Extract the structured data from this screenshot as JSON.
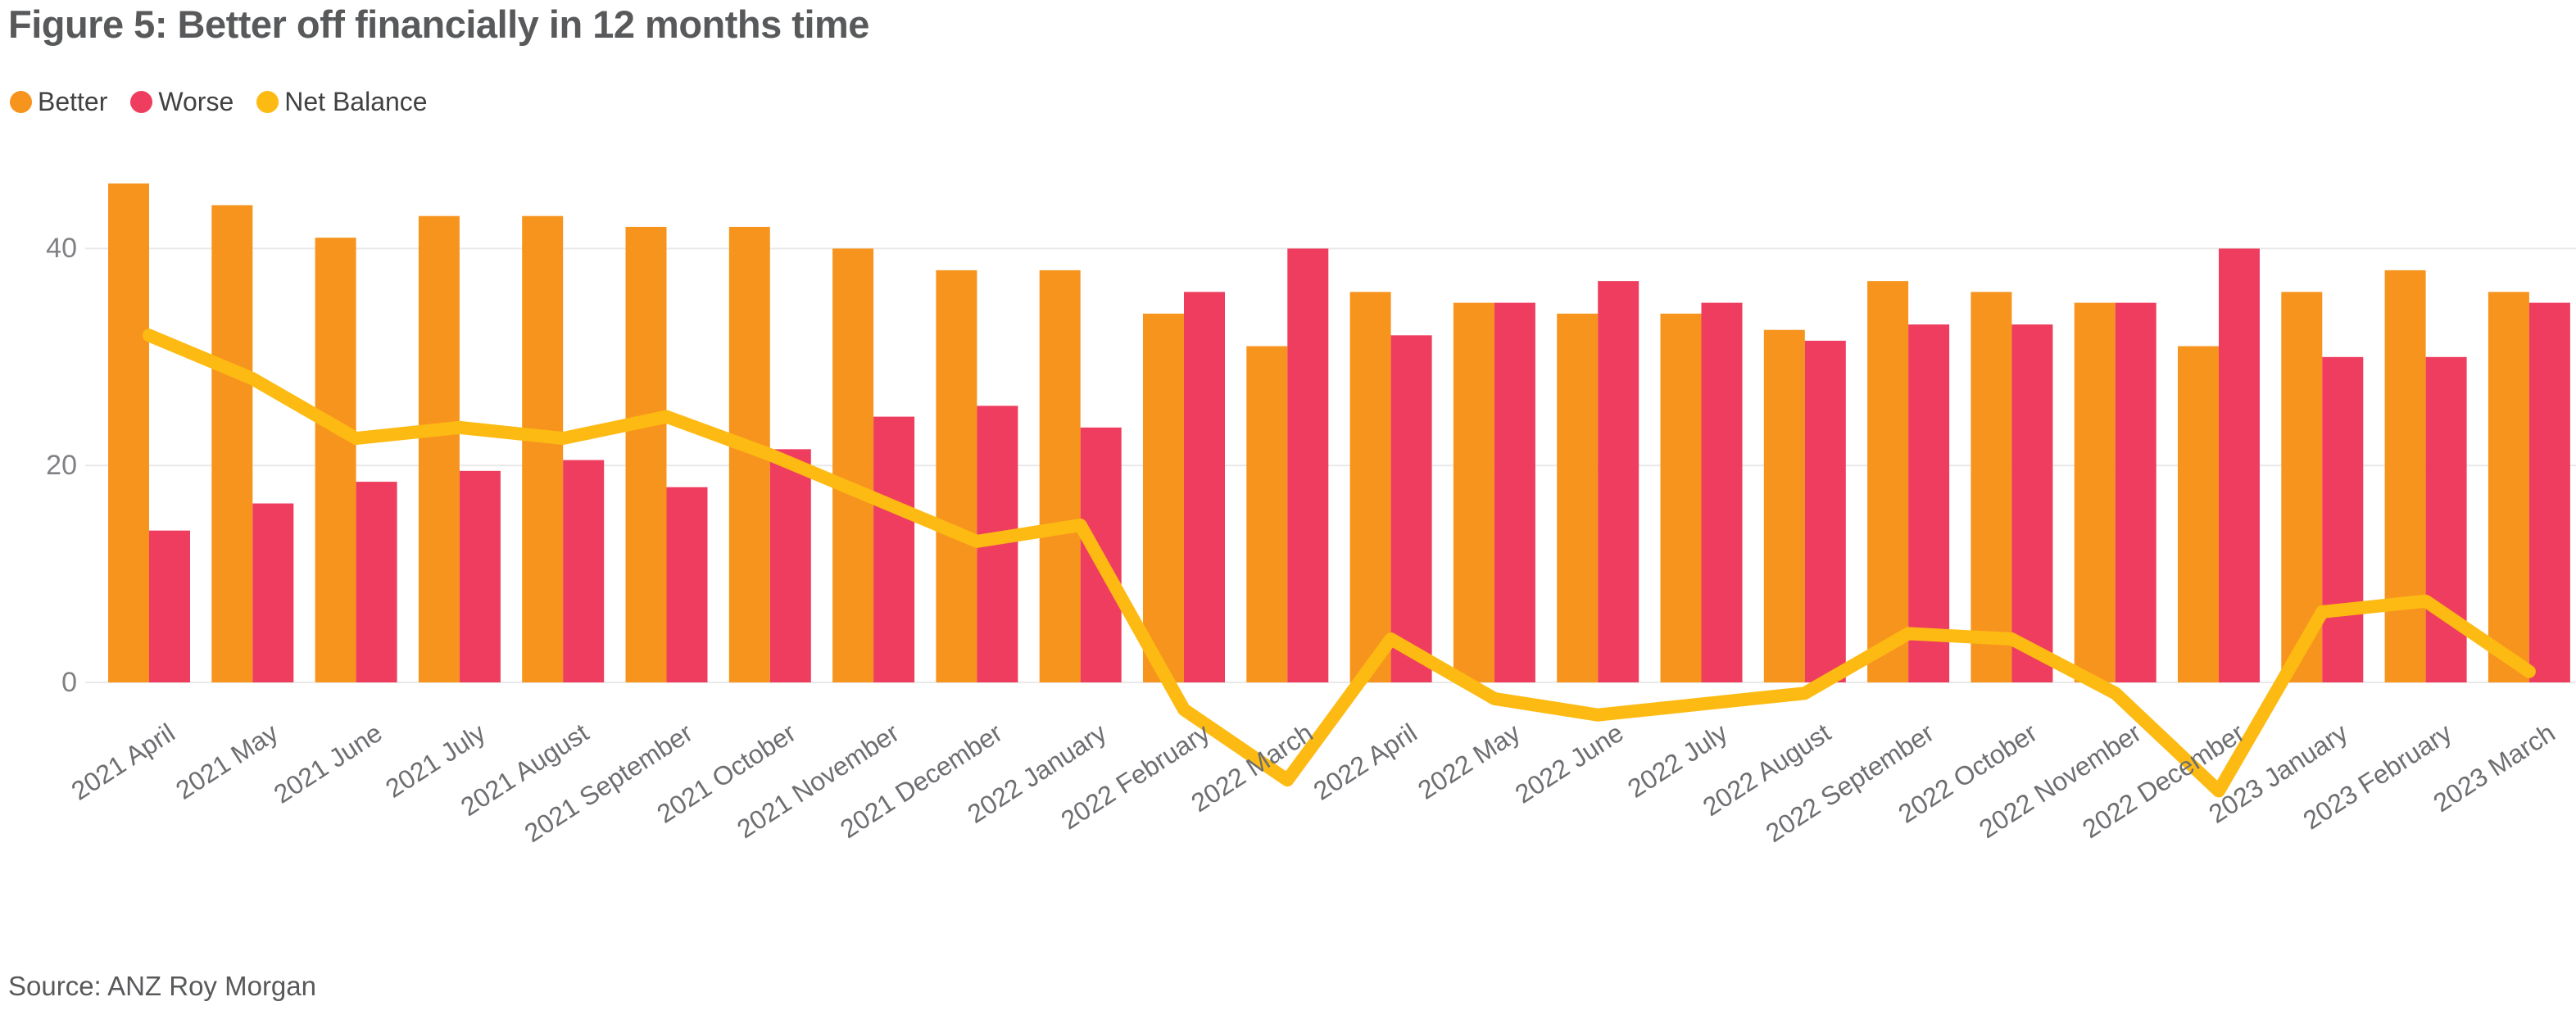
{
  "header": {
    "title": "Figure 5: Better off financially in 12 months time"
  },
  "legend": [
    {
      "label": "Better",
      "color": "#F7941E"
    },
    {
      "label": "Worse",
      "color": "#EE3D5F"
    },
    {
      "label": "Net Balance",
      "color": "#FDBA12"
    }
  ],
  "footer": {
    "source": "Source: ANZ Roy Morgan"
  },
  "colors": {
    "better": "#F7941E",
    "worse": "#EE3D5F",
    "net_balance": "#FDBA12",
    "gridline": "#E9E9EA",
    "title_text": "#58595B",
    "tick_text": "#808184",
    "category_text": "#6D6E71"
  },
  "chart_data": {
    "type": "bar",
    "subtype": "grouped bars with line overlay",
    "title": "Figure 5: Better off financially in 12 months time",
    "xlabel": "",
    "ylabel": "",
    "yticks": [
      0,
      20,
      40
    ],
    "ylim": [
      -12,
      47
    ],
    "grid": "horizontal",
    "legend_position": "top-left",
    "categories": [
      "2021 April",
      "2021 May",
      "2021 June",
      "2021 July",
      "2021 August",
      "2021 September",
      "2021 October",
      "2021 November",
      "2021 December",
      "2022 January",
      "2022 February",
      "2022 March",
      "2022 April",
      "2022 May",
      "2022 June",
      "2022 July",
      "2022 August",
      "2022 September",
      "2022 October",
      "2022 November",
      "2022 December",
      "2023 January",
      "2023 February",
      "2023 March"
    ],
    "series": [
      {
        "name": "Better",
        "type": "bar",
        "color": "#F7941E",
        "values": [
          46,
          44,
          41,
          43,
          43,
          42,
          42,
          40,
          38,
          38,
          34,
          31,
          36,
          35,
          34,
          34,
          32.5,
          37,
          36,
          35,
          31,
          36,
          38,
          36
        ]
      },
      {
        "name": "Worse",
        "type": "bar",
        "color": "#EE3D5F",
        "values": [
          14,
          16.5,
          18.5,
          19.5,
          20.5,
          18,
          21.5,
          24.5,
          25.5,
          23.5,
          36,
          40,
          32,
          35,
          37,
          35,
          31.5,
          33,
          33,
          35,
          40,
          30,
          30,
          35
        ]
      },
      {
        "name": "Net Balance",
        "type": "line",
        "color": "#FDBA12",
        "values": [
          32,
          28,
          22.5,
          23.5,
          22.5,
          24.5,
          21,
          17,
          13,
          14.5,
          -2.5,
          -9,
          4,
          -1.5,
          -3,
          -2,
          -1,
          4.5,
          4,
          -1,
          -10,
          6.5,
          7.5,
          1
        ]
      }
    ]
  }
}
